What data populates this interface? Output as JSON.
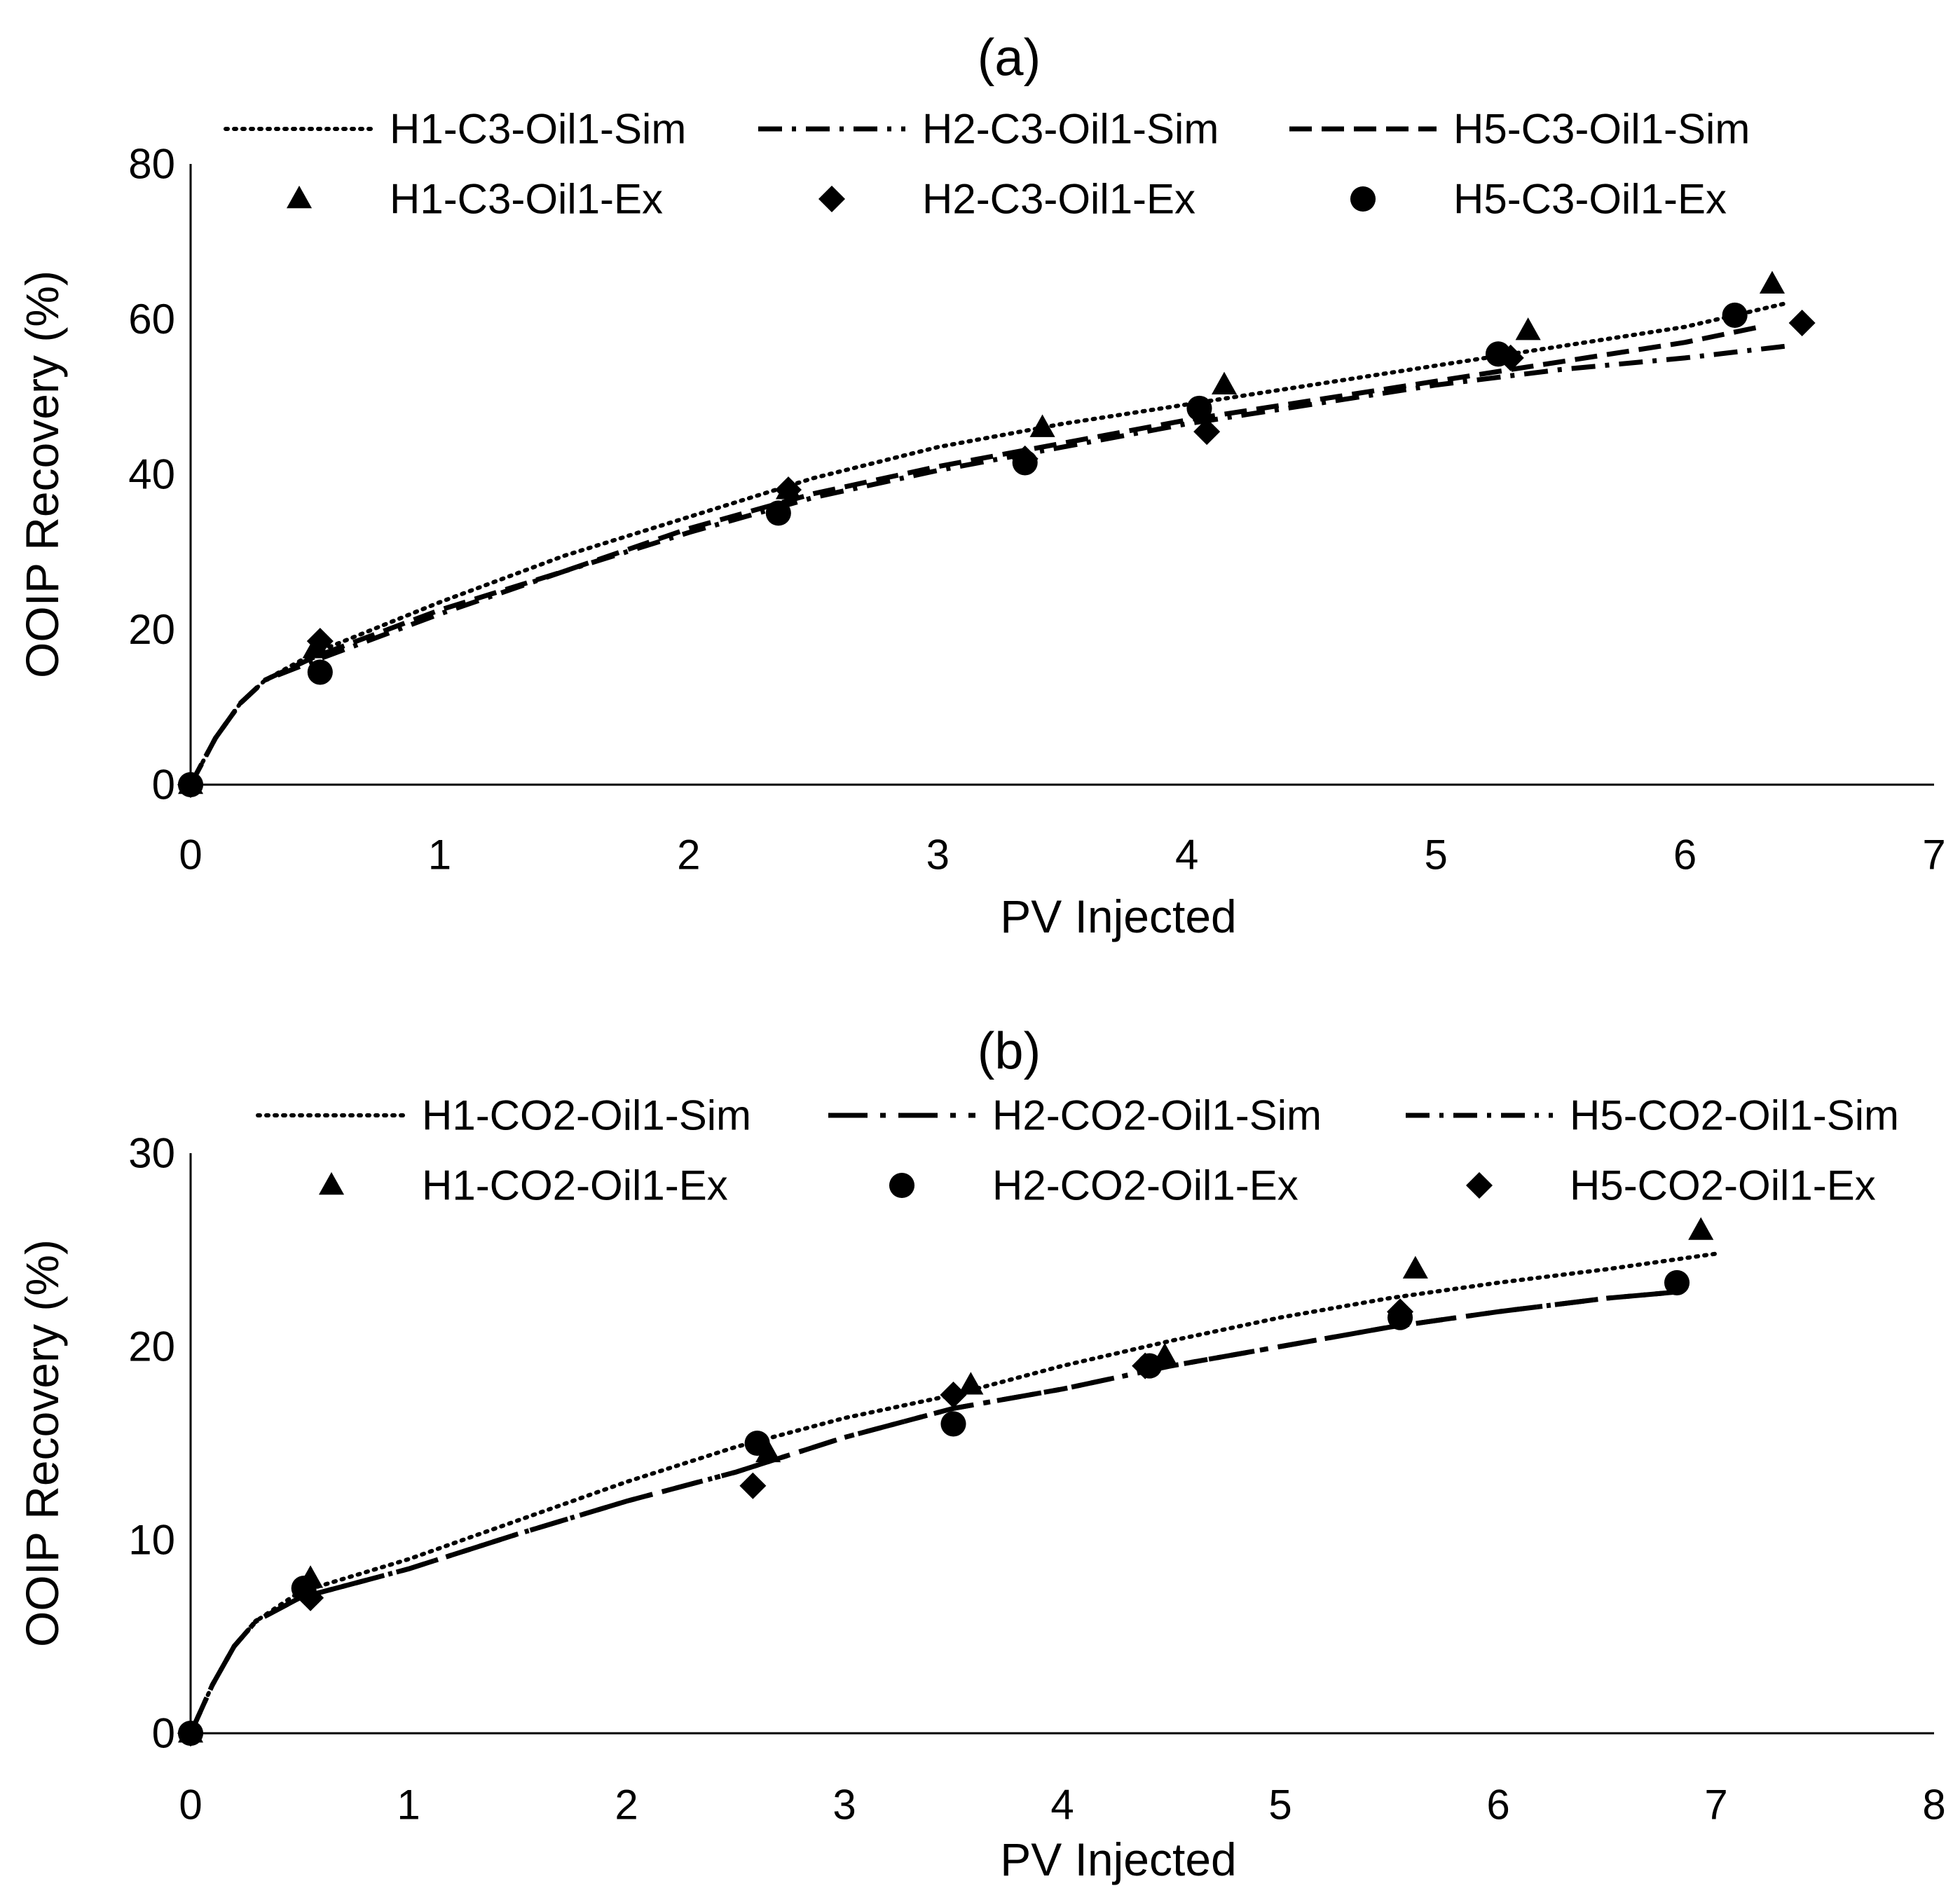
{
  "chart_data": [
    {
      "panel_label": "(a)",
      "type": "line",
      "xlabel": "PV Injected",
      "ylabel": "OOIP Recovery (%)",
      "xlim": [
        0,
        7
      ],
      "ylim": [
        0,
        80
      ],
      "xticks": [
        "0",
        "1",
        "2",
        "3",
        "4",
        "5",
        "6",
        "7"
      ],
      "yticks": [
        "0",
        "20",
        "40",
        "60",
        "80"
      ],
      "grid": false,
      "legend_position": "top",
      "series": [
        {
          "name": "H1-C3-Oil1-Sim",
          "style": "dotted",
          "x": [
            0,
            0.1,
            0.2,
            0.3,
            0.5,
            1.0,
            1.5,
            2.0,
            2.5,
            3.0,
            3.5,
            4.0,
            4.5,
            5.0,
            5.5,
            6.0,
            6.4
          ],
          "y": [
            0,
            6,
            10.5,
            13.5,
            17,
            23.5,
            29.5,
            34.5,
            39.5,
            43.5,
            46.5,
            49,
            51.5,
            54,
            56.5,
            59,
            62
          ]
        },
        {
          "name": "H2-C3-Oil1-Sim",
          "style": "dash-dot",
          "x": [
            0,
            0.1,
            0.2,
            0.3,
            0.5,
            1.0,
            1.5,
            2.0,
            2.5,
            3.0,
            3.5,
            4.0,
            4.5,
            5.0,
            5.5,
            6.0,
            6.4
          ],
          "y": [
            0,
            6,
            10.5,
            13.5,
            16,
            22,
            27.5,
            32.5,
            37,
            40.5,
            43.5,
            46.5,
            49,
            51.5,
            53.5,
            55,
            56.5
          ]
        },
        {
          "name": "H5-C3-Oil1-Sim",
          "style": "dashed",
          "x": [
            0,
            0.1,
            0.2,
            0.3,
            0.5,
            1.0,
            1.5,
            2.0,
            2.5,
            3.0,
            3.5,
            4.0,
            4.5,
            5.0,
            5.5,
            6.0,
            6.3
          ],
          "y": [
            0,
            6,
            10.5,
            13.5,
            16.5,
            22.5,
            27.5,
            33,
            37.5,
            41,
            44,
            47,
            49.5,
            52,
            54.5,
            57,
            59
          ]
        },
        {
          "name": "H1-C3-Oil1-Ex",
          "marker": "triangle",
          "x": [
            0,
            0.5,
            2.4,
            3.42,
            4.15,
            5.37,
            6.35
          ],
          "y": [
            0,
            17.5,
            38,
            46,
            51.5,
            58.5,
            64.5
          ]
        },
        {
          "name": "H2-C3-Oil1-Ex",
          "marker": "diamond",
          "x": [
            0,
            0.52,
            2.4,
            3.35,
            4.08,
            5.3,
            6.47
          ],
          "y": [
            0,
            18.5,
            38,
            42,
            45.5,
            55,
            59.5
          ]
        },
        {
          "name": "H5-C3-Oil1-Ex",
          "marker": "circle",
          "x": [
            0,
            0.52,
            2.36,
            3.35,
            4.05,
            5.25,
            6.2
          ],
          "y": [
            0,
            14.5,
            35,
            41.5,
            48.5,
            55.5,
            60.5
          ]
        }
      ]
    },
    {
      "panel_label": "(b)",
      "type": "line",
      "xlabel": "PV Injected",
      "ylabel": "OOIP Recovery (%)",
      "xlim": [
        0,
        8
      ],
      "ylim": [
        0,
        30
      ],
      "xticks": [
        "0",
        "1",
        "2",
        "3",
        "4",
        "5",
        "6",
        "7",
        "8"
      ],
      "yticks": [
        "0",
        "10",
        "20",
        "30"
      ],
      "grid": false,
      "legend_position": "top",
      "series": [
        {
          "name": "H1-CO2-Oil1-Sim",
          "style": "dotted",
          "x": [
            0,
            0.1,
            0.2,
            0.3,
            0.5,
            1.0,
            1.5,
            2.0,
            2.5,
            3.0,
            3.5,
            4.0,
            4.5,
            5.0,
            5.5,
            6.0,
            6.5,
            7.0
          ],
          "y": [
            0,
            2.5,
            4.5,
            5.8,
            7.3,
            9,
            11,
            13,
            14.8,
            16.3,
            17.5,
            19,
            20.3,
            21.5,
            22.5,
            23.3,
            24,
            24.8
          ]
        },
        {
          "name": "H2-CO2-Oil1-Sim",
          "style": "long-dash-dot",
          "x": [
            0,
            0.1,
            0.2,
            0.3,
            0.5,
            1.0,
            1.5,
            2.0,
            2.5,
            3.0,
            3.5,
            4.0,
            4.5,
            5.0,
            5.5,
            6.0,
            6.5,
            6.8
          ],
          "y": [
            0,
            2.5,
            4.5,
            5.8,
            7,
            8.5,
            10.3,
            12,
            13.5,
            15.3,
            16.8,
            17.8,
            19,
            20,
            21,
            21.8,
            22.5,
            22.8
          ]
        },
        {
          "name": "H5-CO2-Oil1-Sim",
          "style": "dash-dot",
          "x": [
            0,
            0.1,
            0.2,
            0.3,
            0.5,
            1.0,
            1.5,
            2.0,
            2.5,
            3.0,
            3.5,
            4.0,
            4.5,
            5.0,
            5.5,
            6.0,
            6.5,
            6.8
          ],
          "y": [
            0,
            2.5,
            4.5,
            5.8,
            7,
            8.5,
            10.3,
            12,
            13.5,
            15.3,
            16.8,
            17.8,
            19,
            20,
            21,
            21.8,
            22.5,
            22.8
          ]
        },
        {
          "name": "H1-CO2-Oil1-Ex",
          "marker": "triangle",
          "x": [
            0,
            0.55,
            2.65,
            3.58,
            4.47,
            5.62,
            6.93
          ],
          "y": [
            0,
            8,
            14.5,
            18,
            19.5,
            24,
            26
          ]
        },
        {
          "name": "H2-CO2-Oil1-Ex",
          "marker": "circle",
          "x": [
            0,
            0.52,
            2.6,
            3.5,
            4.4,
            5.55,
            6.82
          ],
          "y": [
            0,
            7.5,
            15,
            16,
            19,
            21.5,
            23.3
          ]
        },
        {
          "name": "H5-CO2-Oil1-Ex",
          "marker": "diamond",
          "x": [
            0,
            0.55,
            2.58,
            3.5,
            4.38,
            5.55
          ],
          "y": [
            0,
            7,
            12.8,
            17.5,
            19,
            21.8
          ]
        }
      ]
    }
  ]
}
